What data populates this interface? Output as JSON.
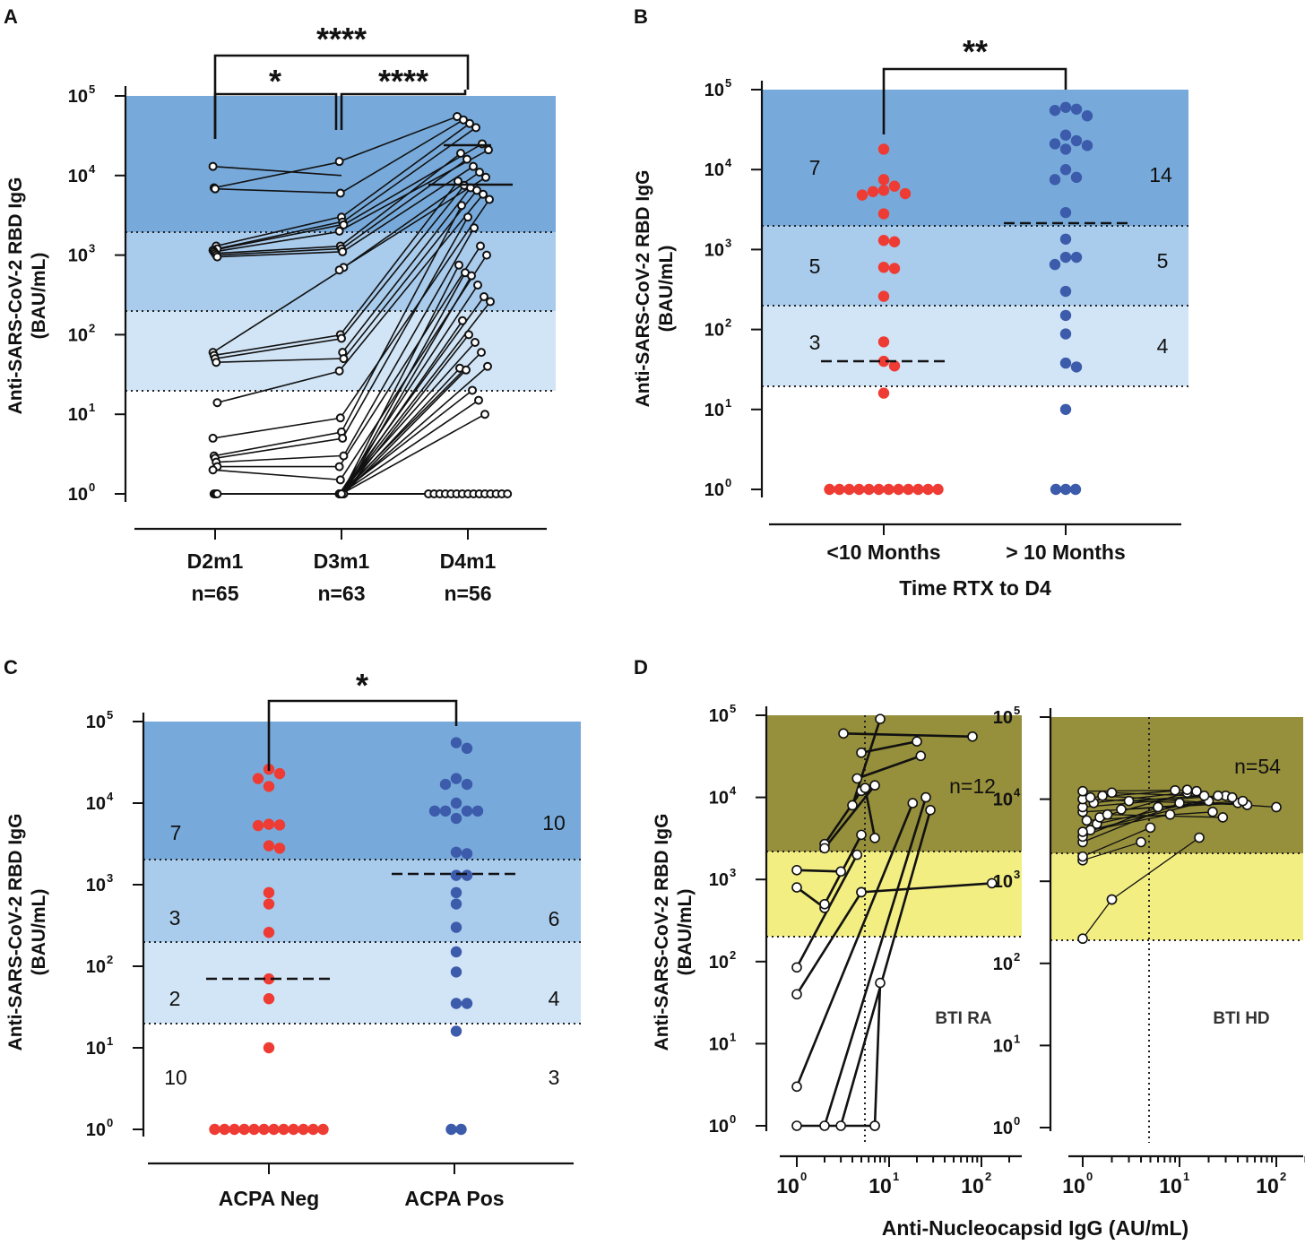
{
  "colors": {
    "band_high": "#77aadb",
    "band_mid": "#a9cbec",
    "band_low": "#d2e5f6",
    "band_high_d": "#968f3b",
    "band_mid_d": "#f3ee82",
    "red_points": "#ee3b33",
    "blue_points": "#3c5bab",
    "axis": "#111111"
  },
  "chart_data": [
    {
      "panel": "A",
      "type": "scatter",
      "paired_lines": true,
      "ylabel_line1": "Anti-SARS-CoV-2 RBD IgG",
      "ylabel_line2": "(BAU/mL)",
      "yscale": "log",
      "ylim": [
        1,
        100000
      ],
      "ytick_base": "10",
      "yticks_exponents": [
        "0",
        "1",
        "2",
        "3",
        "4",
        "5"
      ],
      "thresholds": [
        20,
        200,
        2000
      ],
      "categories": [
        {
          "name": "D2m1",
          "n": "n=65"
        },
        {
          "name": "D3m1",
          "n": "n=63"
        },
        {
          "name": "D4m1",
          "n": "n=56"
        }
      ],
      "medians": [
        null,
        null,
        7800
      ],
      "d4_upper_marker": 23000,
      "significance": [
        {
          "pair": [
            0,
            2
          ],
          "label": "****"
        },
        {
          "pair": [
            0,
            1
          ],
          "label": "*"
        },
        {
          "pair": [
            1,
            2
          ],
          "label": "****"
        }
      ],
      "pairs": [
        [
          13000,
          10000
        ],
        [
          7000,
          15000
        ],
        [
          6800,
          6000
        ],
        [
          1300,
          3000
        ],
        [
          1200,
          2600
        ],
        [
          1150,
          2400
        ],
        [
          1100,
          2000
        ],
        [
          1050,
          1300
        ],
        [
          1000,
          1200
        ],
        [
          950,
          1100
        ],
        [
          60,
          650
        ],
        [
          55,
          100
        ],
        [
          50,
          90
        ],
        [
          45,
          50
        ],
        [
          14,
          35
        ],
        [
          5,
          9
        ],
        [
          3,
          6
        ],
        [
          2.8,
          5
        ],
        [
          2.5,
          3
        ],
        [
          2.2,
          2.2
        ],
        [
          2,
          1.5
        ],
        [
          1,
          1
        ],
        [
          1,
          1
        ],
        [
          1,
          1
        ],
        [
          1,
          1
        ]
      ],
      "d3d4_pairs": [
        [
          15000,
          55000
        ],
        [
          6000,
          50000
        ],
        [
          3000,
          45000
        ],
        [
          2600,
          40000
        ],
        [
          2400,
          25000
        ],
        [
          2000,
          21000
        ],
        [
          1300,
          19000
        ],
        [
          1200,
          16000
        ],
        [
          1100,
          13000
        ],
        [
          700,
          11000
        ],
        [
          650,
          9500
        ],
        [
          100,
          8500
        ],
        [
          90,
          7500
        ],
        [
          60,
          7000
        ],
        [
          50,
          6500
        ],
        [
          35,
          5800
        ],
        [
          9,
          5000
        ],
        [
          6,
          4200
        ],
        [
          5,
          3000
        ],
        [
          3,
          2200
        ],
        [
          2.2,
          1300
        ],
        [
          1.5,
          1000
        ],
        [
          1,
          750
        ],
        [
          1,
          600
        ],
        [
          1,
          550
        ],
        [
          1,
          420
        ],
        [
          1,
          300
        ],
        [
          1,
          260
        ],
        [
          1,
          150
        ],
        [
          1,
          100
        ],
        [
          1,
          80
        ],
        [
          1,
          60
        ],
        [
          1,
          40
        ],
        [
          1,
          38
        ],
        [
          1,
          36
        ],
        [
          1,
          20
        ],
        [
          1,
          15
        ],
        [
          1,
          10
        ]
      ],
      "d4_zero_count": 15
    },
    {
      "panel": "B",
      "type": "scatter",
      "ylabel_line1": "Anti-SARS-CoV-2 RBD IgG",
      "ylabel_line2": "(BAU/mL)",
      "xlabel": "Time RTX to D4",
      "yscale": "log",
      "ylim": [
        1,
        100000
      ],
      "ytick_base": "10",
      "yticks_exponents": [
        "0",
        "1",
        "2",
        "3",
        "4",
        "5"
      ],
      "thresholds": [
        20,
        200,
        2000
      ],
      "categories": [
        "<10 Months",
        "> 10 Months"
      ],
      "series": [
        {
          "name": "<10 Months",
          "color": "red",
          "values": [
            18000,
            7500,
            6200,
            5500,
            5300,
            5000,
            4800,
            2800,
            1300,
            1250,
            600,
            580,
            260,
            70,
            40,
            35,
            16,
            1,
            1,
            1,
            1,
            1,
            1,
            1,
            1,
            1,
            1,
            1,
            1
          ],
          "median": 40
        },
        {
          "name": "> 10 Months",
          "color": "blue",
          "values": [
            60000,
            57000,
            55000,
            47000,
            27000,
            23000,
            21000,
            20000,
            18000,
            10000,
            8000,
            7500,
            2900,
            1350,
            800,
            800,
            650,
            300,
            150,
            88,
            38,
            34,
            10,
            1,
            1,
            1
          ],
          "median": 2200
        }
      ],
      "band_counts": {
        "left": [
          "7",
          "5",
          "3"
        ],
        "right": [
          "14",
          "5",
          "4"
        ]
      },
      "significance": [
        {
          "pair": [
            0,
            1
          ],
          "label": "**"
        }
      ]
    },
    {
      "panel": "C",
      "type": "scatter",
      "ylabel_line1": "Anti-SARS-CoV-2 RBD IgG",
      "ylabel_line2": "(BAU/mL)",
      "yscale": "log",
      "ylim": [
        1,
        100000
      ],
      "ytick_base": "10",
      "yticks_exponents": [
        "0",
        "1",
        "2",
        "3",
        "4",
        "5"
      ],
      "thresholds": [
        20,
        200,
        2000
      ],
      "categories": [
        "ACPA Neg",
        "ACPA Pos"
      ],
      "series": [
        {
          "name": "ACPA Neg",
          "color": "red",
          "values": [
            26000,
            23000,
            20000,
            16000,
            5500,
            5400,
            5300,
            3000,
            2800,
            800,
            580,
            260,
            70,
            40,
            10,
            1,
            1,
            1,
            1,
            1,
            1,
            1,
            1,
            1,
            1,
            1,
            1
          ],
          "median": 70
        },
        {
          "name": "ACPA Pos",
          "color": "blue",
          "values": [
            55000,
            47000,
            20000,
            17000,
            17000,
            10000,
            8000,
            8000,
            8000,
            8000,
            6500,
            2500,
            2400,
            1300,
            1300,
            800,
            580,
            300,
            150,
            85,
            35,
            35,
            16,
            1,
            1
          ],
          "median": 1300
        }
      ],
      "band_counts": {
        "left": [
          "7",
          "3",
          "2",
          "10"
        ],
        "right": [
          "10",
          "6",
          "4",
          "3"
        ]
      },
      "significance": [
        {
          "pair": [
            0,
            1
          ],
          "label": "*"
        }
      ]
    },
    {
      "panel": "D",
      "type": "scatter",
      "paired_lines": true,
      "ylabel_line1": "Anti-SARS-CoV-2 RBD IgG",
      "ylabel_line2": "(BAU/mL)",
      "xlabel": "Anti-Nucleocapsid IgG (AU/mL)",
      "xscale": "log",
      "yscale": "log",
      "ylim": [
        1,
        100000
      ],
      "ytick_base": "10",
      "yticks_exponents": [
        "0",
        "1",
        "2",
        "3",
        "4",
        "5"
      ],
      "xticks_exponents": [
        "0",
        "1",
        "2"
      ],
      "thresholds_y": [
        200,
        2000
      ],
      "subplots": [
        {
          "name": "BTI RA",
          "n": "n=12",
          "xlim": [
            0.8,
            200
          ],
          "x_cutoff": 5,
          "segments": [
            [
              [
                3.2,
                60000
              ],
              [
                80,
                55000
              ]
            ],
            [
              [
                5,
                35000
              ],
              [
                20,
                48000
              ]
            ],
            [
              [
                4.5,
                17000
              ],
              [
                22,
                32000
              ]
            ],
            [
              [
                4,
                8000
              ],
              [
                8,
                90000
              ]
            ],
            [
              [
                2,
                2700
              ],
              [
                5,
                12000
              ]
            ],
            [
              [
                2,
                2400
              ],
              [
                7,
                14000
              ]
            ],
            [
              [
                5.5,
                13000
              ],
              [
                7,
                3200
              ]
            ],
            [
              [
                1,
                1300
              ],
              [
                3,
                1250
              ]
            ],
            [
              [
                1,
                800
              ],
              [
                2,
                450
              ]
            ],
            [
              [
                2,
                500
              ],
              [
                5,
                3500
              ]
            ],
            [
              [
                5,
                700
              ],
              [
                130,
                900
              ]
            ],
            [
              [
                1,
                85
              ],
              [
                4.5,
                2000
              ]
            ],
            [
              [
                1,
                40
              ],
              [
                5,
                700
              ]
            ],
            [
              [
                1,
                3
              ],
              [
                18,
                8500
              ]
            ],
            [
              [
                2,
                1
              ],
              [
                25,
                10000
              ]
            ],
            [
              [
                3,
                1
              ],
              [
                28,
                7000
              ]
            ],
            [
              [
                7,
                1
              ],
              [
                8,
                55
              ]
            ],
            [
              [
                1,
                1
              ],
              [
                7,
                1
              ]
            ]
          ]
        },
        {
          "name": "BTI HD",
          "n": "n=54",
          "xlim": [
            0.8,
            200
          ],
          "x_cutoff": 4,
          "segments": [
            [
              [
                1,
                200
              ],
              [
                2,
                600
              ]
            ],
            [
              [
                2,
                600
              ],
              [
                16,
                3400
              ]
            ],
            [
              [
                1,
                1800
              ],
              [
                4,
                3000
              ]
            ],
            [
              [
                1,
                2000
              ],
              [
                5,
                4500
              ]
            ],
            [
              [
                1,
                3000
              ],
              [
                10,
                9000
              ]
            ],
            [
              [
                1,
                3500
              ],
              [
                6,
                8000
              ]
            ],
            [
              [
                1.2,
                4200
              ],
              [
                20,
                9500
              ]
            ],
            [
              [
                1.4,
                5000
              ],
              [
                30,
                11000
              ]
            ],
            [
              [
                1.5,
                6000
              ],
              [
                12,
                12000
              ]
            ],
            [
              [
                1,
                7000
              ],
              [
                40,
                9000
              ]
            ],
            [
              [
                1,
                8000
              ],
              [
                25,
                11000
              ]
            ],
            [
              [
                1.3,
                9000
              ],
              [
                15,
                12500
              ]
            ],
            [
              [
                1,
                10000
              ],
              [
                50,
                8500
              ]
            ],
            [
              [
                1.6,
                11000
              ],
              [
                100,
                8000
              ]
            ],
            [
              [
                2,
                12000
              ],
              [
                35,
                10500
              ]
            ],
            [
              [
                1,
                12500
              ],
              [
                9,
                12800
              ]
            ],
            [
              [
                1.8,
                6500
              ],
              [
                28,
                6000
              ]
            ],
            [
              [
                1.1,
                5500
              ],
              [
                22,
                7000
              ]
            ],
            [
              [
                2.5,
                7500
              ],
              [
                45,
                9500
              ]
            ],
            [
              [
                3,
                9500
              ],
              [
                18,
                11000
              ]
            ],
            [
              [
                1,
                4000
              ],
              [
                8,
                6500
              ]
            ],
            [
              [
                1.2,
                10500
              ],
              [
                12,
                13000
              ]
            ]
          ]
        }
      ]
    }
  ]
}
